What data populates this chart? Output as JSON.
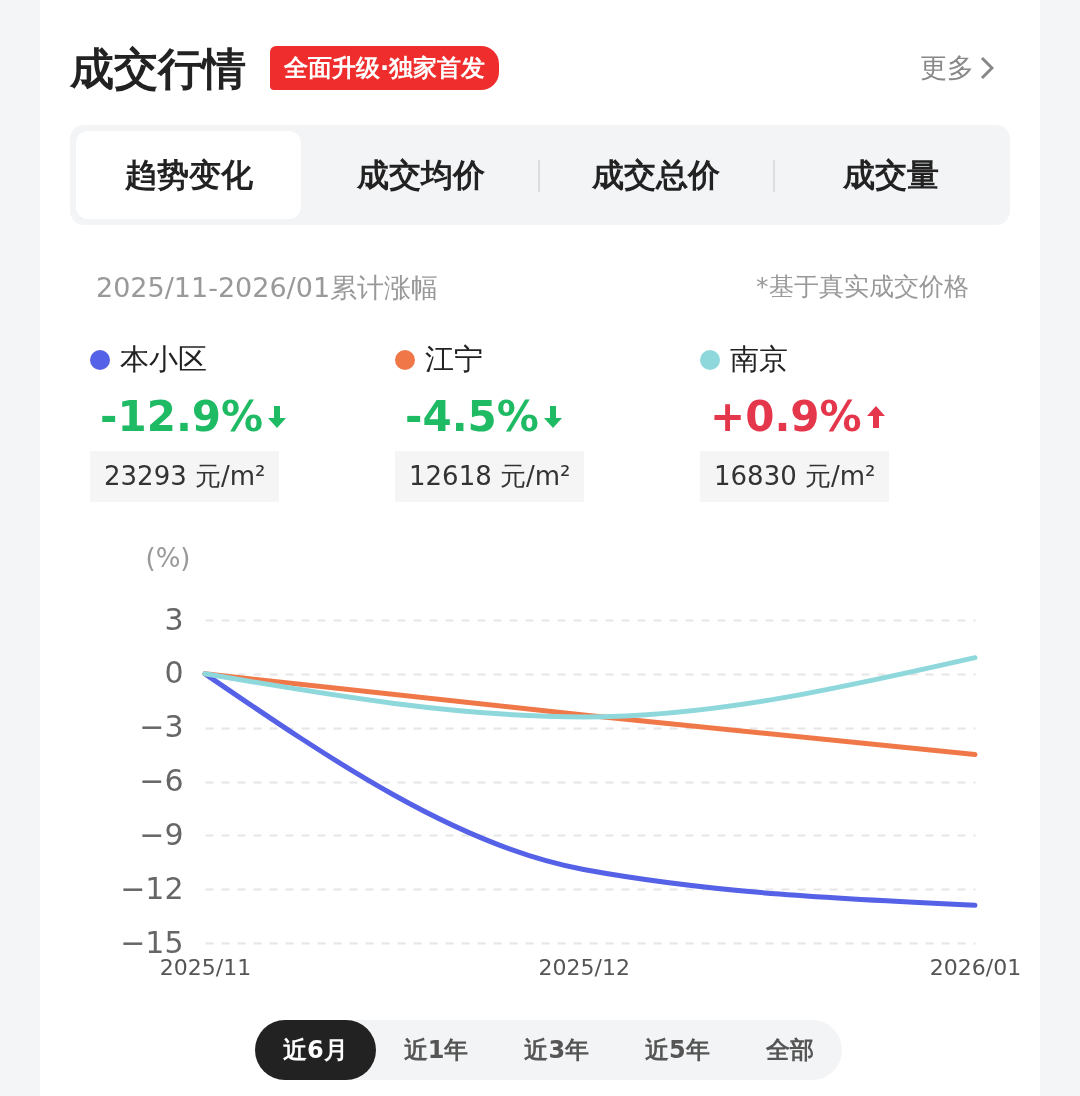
{
  "chart_data": {
    "type": "line",
    "title": "成交行情",
    "subtitle": "2025/11-2026/01累计涨幅",
    "ylabel": "(%)",
    "annotations": [
      "全面升级·独家首发",
      "更多",
      "趋势变化",
      "成交均价",
      "成交总价",
      "成交量",
      "*基于真实成交价格",
      "-12.9%",
      "-4.5%",
      "+0.9%",
      "23293 元/m²",
      "12618 元/m²",
      "16830 元/m²",
      "近6月",
      "近1年",
      "近3年",
      "近5年",
      "全部"
    ],
    "x": [
      "2025-11",
      "2025-12",
      "2026-01"
    ],
    "xlim": [
      "2025-11",
      "2026-01"
    ],
    "xticks": [
      {
        "value": "2025-11",
        "label": "2025/11"
      },
      {
        "value": "2025-12",
        "label": "2025/12"
      },
      {
        "value": "2026-01",
        "label": "2026/01"
      }
    ],
    "ylim": [
      -15,
      3
    ],
    "yticks": [
      -15,
      -12,
      -9,
      -6,
      -3,
      0,
      3
    ],
    "series": [
      {
        "name": "本小区",
        "color": "#5561e6",
        "values": [
          0,
          -10.9,
          -12.9
        ]
      },
      {
        "name": "江宁",
        "color": "#f07848",
        "values": [
          0,
          -2.3,
          -4.5
        ]
      },
      {
        "name": "南京",
        "color": "#8ed8dc",
        "values": [
          0,
          -2.4,
          0.9
        ]
      }
    ],
    "grid": "y",
    "legend": "top",
    "line_style": "solid",
    "marker": "none"
  }
}
